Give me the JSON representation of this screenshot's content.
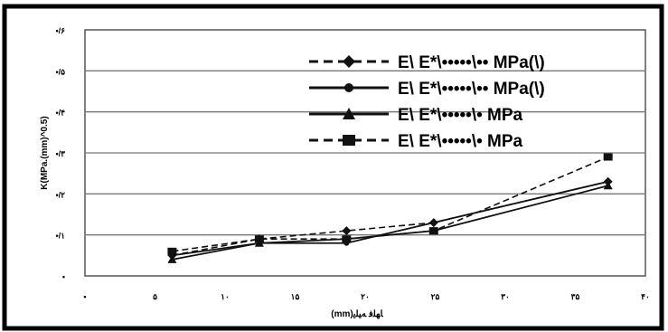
{
  "chart_data": {
    "type": "line",
    "title": "",
    "xlabel": "(mm)ﺎﻬﻠﻓ ﻪﻴﻠﻳ",
    "ylabel": "K(MPa.(mm)^0.5)",
    "xlim": [
      0,
      45
    ],
    "ylim": [
      0,
      0.6
    ],
    "x_ticks": [
      "•",
      "۵",
      "۱۰",
      "۱۵",
      "۲۰",
      "۲۵",
      "۳۰",
      "۳۵",
      "۴۰"
    ],
    "y_ticks": [
      "•",
      "•/۱",
      "•/۲",
      "•/۳",
      "•/۴",
      "•/۵",
      "•/۶"
    ],
    "grid": "horizontal",
    "legend_position": "top-right",
    "series": [
      {
        "name": "E\\ E*\\•••••\\•• MPa(\\)",
        "style": "dashed-diamond",
        "x": [
          7,
          14,
          21,
          28,
          42
        ],
        "y": [
          0.05,
          0.09,
          0.11,
          0.13,
          0.23
        ]
      },
      {
        "name": "E\\ E*\\•••••\\•• MPa(\\)",
        "style": "solid-dot",
        "x": [
          7,
          14,
          21,
          28,
          42
        ],
        "y": [
          0.05,
          0.08,
          0.08,
          0.13,
          0.23
        ]
      },
      {
        "name": "E\\ E*\\•••••\\• MPa",
        "style": "solid-triangle",
        "x": [
          7,
          14,
          21,
          28,
          42
        ],
        "y": [
          0.04,
          0.08,
          0.09,
          0.11,
          0.22
        ]
      },
      {
        "name": "E\\ E*\\•••••\\• MPa",
        "style": "dashed-square",
        "x": [
          7,
          14,
          21,
          28,
          42
        ],
        "y": [
          0.06,
          0.09,
          0.09,
          0.11,
          0.29
        ]
      }
    ]
  }
}
